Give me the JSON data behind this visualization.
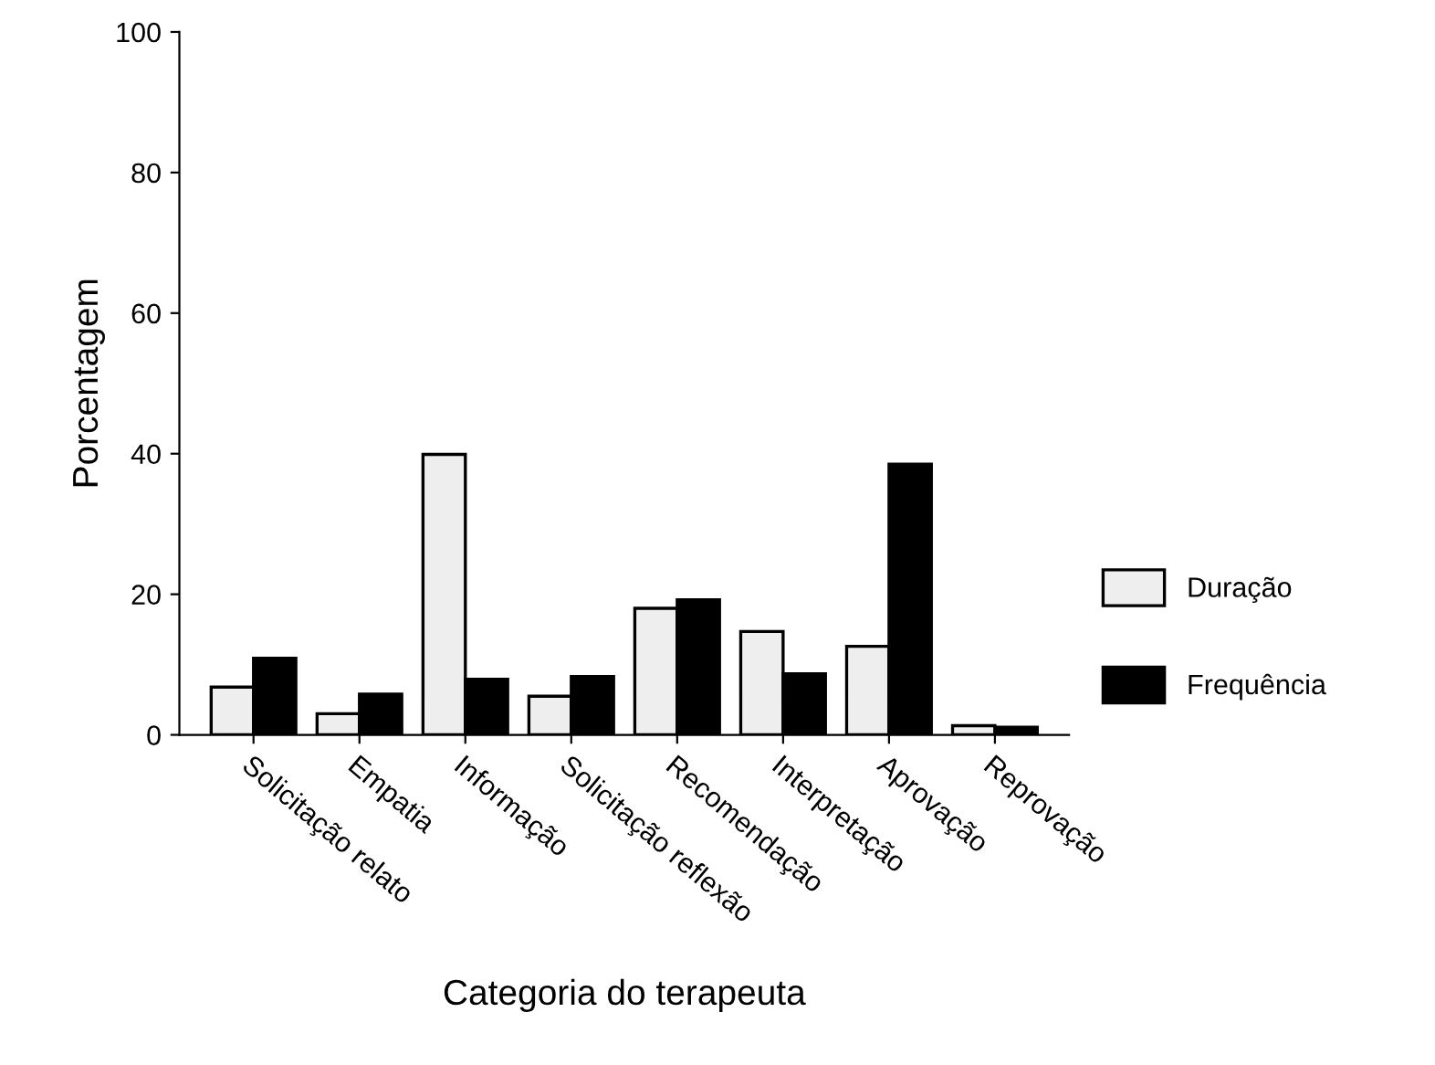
{
  "chart_data": {
    "type": "bar",
    "xlabel": "Categoria do terapeuta",
    "ylabel": "Porcentagem",
    "categories": [
      "Solicitação relato",
      "Empatia",
      "Informação",
      "Solicitação reflexão",
      "Recomendação",
      "Interpretação",
      "Aprovação",
      "Reprovação"
    ],
    "series": [
      {
        "name": "Duração",
        "color": "#eeeeee",
        "values": [
          6.8,
          3.0,
          39.9,
          5.5,
          18.0,
          14.7,
          12.6,
          1.3
        ]
      },
      {
        "name": "Frequência",
        "color": "#000000",
        "values": [
          10.9,
          5.8,
          7.9,
          8.3,
          19.2,
          8.7,
          38.5,
          1.1
        ]
      }
    ],
    "ylim": [
      0,
      100
    ],
    "yticks": [
      0,
      20,
      40,
      60,
      80,
      100
    ],
    "grid": false,
    "legend": "right"
  }
}
